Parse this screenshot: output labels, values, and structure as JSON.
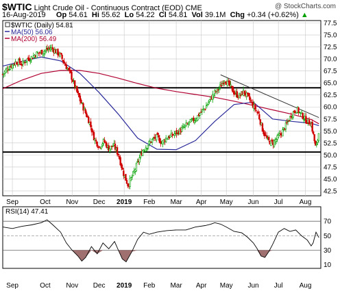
{
  "header": {
    "ticker": "$WTIC",
    "name": "Light Crude Oil - Continuous Contract (EOD)",
    "exchange": "CME",
    "copyright": "@ StockCharts.com",
    "date": "16-Aug-2019",
    "op_label": "Op",
    "op": "54.61",
    "hi_label": "Hi",
    "hi": "55.62",
    "lo_label": "Lo",
    "lo": "54.22",
    "cl_label": "Cl",
    "cl": "54.81",
    "vol_label": "Vol",
    "vol": "39.1M",
    "chg_label": "Chg",
    "chg": "+0.34 (+0.62%)",
    "chg_arrow": "▲"
  },
  "colors": {
    "price_up": "#00a000",
    "price_down": "#d00000",
    "ma50": "#2a2a9a",
    "ma200": "#b00030",
    "grid": "#c8c8c8",
    "rsi_line": "#000000",
    "rsi_fill": "#a07070"
  },
  "chart_data": [
    {
      "type": "candlestick",
      "legend": [
        {
          "label": "$WTIC (Daily) 54.81",
          "color": "#000000"
        },
        {
          "label": "MA(50) 56.06",
          "color": "#2a2a9a"
        },
        {
          "label": "MA(200) 56.49",
          "color": "#b00030"
        }
      ],
      "ylim": [
        41.5,
        78.0
      ],
      "y_ticks": [
        "42.5",
        "45.0",
        "47.5",
        "50.0",
        "52.5",
        "55.0",
        "57.5",
        "60.0",
        "62.5",
        "65.0",
        "67.5",
        "70.0",
        "72.5",
        "75.0",
        "77.5"
      ],
      "x_labels": [
        "Sep",
        "Oct",
        "Nov",
        "Dec",
        "2019",
        "Feb",
        "Mar",
        "Apr",
        "May",
        "Jun",
        "Jul",
        "Aug"
      ],
      "x_label_pos": [
        0.5,
        2.2,
        3.6,
        5.0,
        6.3,
        7.6,
        9.0,
        10.3,
        11.6,
        13.0,
        14.3,
        15.7
      ],
      "x_range": [
        0,
        16.5
      ],
      "hlines": [
        64.0,
        50.6
      ],
      "trendline": {
        "x": [
          11.3,
          16.4
        ],
        "y": [
          66.7,
          57.8
        ]
      },
      "close_points": [
        [
          0.0,
          66.8
        ],
        [
          0.25,
          68.0
        ],
        [
          0.5,
          68.8
        ],
        [
          0.75,
          69.5
        ],
        [
          1.0,
          68.9
        ],
        [
          1.25,
          69.9
        ],
        [
          1.5,
          70.3
        ],
        [
          1.75,
          71.1
        ],
        [
          2.0,
          71.4
        ],
        [
          2.25,
          71.8
        ],
        [
          2.5,
          72.3
        ],
        [
          2.75,
          71.6
        ],
        [
          3.0,
          70.7
        ],
        [
          3.25,
          68.7
        ],
        [
          3.5,
          67.0
        ],
        [
          3.75,
          64.2
        ],
        [
          4.0,
          61.5
        ],
        [
          4.25,
          59.2
        ],
        [
          4.5,
          56.8
        ],
        [
          4.75,
          53.4
        ],
        [
          5.0,
          51.7
        ],
        [
          5.25,
          52.9
        ],
        [
          5.5,
          51.3
        ],
        [
          5.75,
          52.0
        ],
        [
          6.0,
          50.1
        ],
        [
          6.25,
          46.3
        ],
        [
          6.5,
          43.7
        ],
        [
          6.75,
          45.8
        ],
        [
          7.0,
          48.4
        ],
        [
          7.25,
          50.9
        ],
        [
          7.5,
          52.0
        ],
        [
          7.75,
          53.1
        ],
        [
          8.0,
          53.8
        ],
        [
          8.25,
          52.5
        ],
        [
          8.5,
          53.6
        ],
        [
          8.75,
          54.0
        ],
        [
          9.0,
          54.6
        ],
        [
          9.25,
          55.2
        ],
        [
          9.5,
          56.1
        ],
        [
          9.75,
          56.9
        ],
        [
          10.0,
          57.5
        ],
        [
          10.25,
          58.8
        ],
        [
          10.5,
          59.8
        ],
        [
          10.75,
          61.5
        ],
        [
          11.0,
          63.0
        ],
        [
          11.25,
          64.0
        ],
        [
          11.5,
          65.8
        ],
        [
          11.75,
          64.5
        ],
        [
          12.0,
          63.0
        ],
        [
          12.25,
          62.2
        ],
        [
          12.5,
          63.2
        ],
        [
          12.75,
          61.9
        ],
        [
          13.0,
          60.2
        ],
        [
          13.25,
          58.6
        ],
        [
          13.5,
          55.0
        ],
        [
          13.75,
          53.0
        ],
        [
          14.0,
          52.4
        ],
        [
          14.25,
          53.5
        ],
        [
          14.5,
          54.8
        ],
        [
          14.75,
          56.6
        ],
        [
          15.0,
          58.6
        ],
        [
          15.25,
          59.5
        ],
        [
          15.5,
          58.4
        ],
        [
          15.75,
          57.1
        ],
        [
          16.0,
          56.6
        ],
        [
          16.25,
          51.2
        ],
        [
          16.4,
          54.8
        ]
      ],
      "ma50_points": [
        [
          0.0,
          68.5
        ],
        [
          1.0,
          69.5
        ],
        [
          2.0,
          70.4
        ],
        [
          3.0,
          69.6
        ],
        [
          4.0,
          67.0
        ],
        [
          5.0,
          63.0
        ],
        [
          6.0,
          58.5
        ],
        [
          7.0,
          53.5
        ],
        [
          8.0,
          51.2
        ],
        [
          9.0,
          51.1
        ],
        [
          10.0,
          53.0
        ],
        [
          11.0,
          57.0
        ],
        [
          12.0,
          60.5
        ],
        [
          13.0,
          61.0
        ],
        [
          14.0,
          57.5
        ],
        [
          15.0,
          57.0
        ],
        [
          16.0,
          56.6
        ],
        [
          16.4,
          56.1
        ]
      ],
      "ma200_points": [
        [
          0.0,
          63.8
        ],
        [
          1.0,
          65.6
        ],
        [
          2.0,
          67.0
        ],
        [
          3.0,
          67.6
        ],
        [
          4.0,
          67.6
        ],
        [
          5.0,
          67.0
        ],
        [
          6.0,
          66.0
        ],
        [
          7.0,
          64.9
        ],
        [
          8.0,
          63.9
        ],
        [
          9.0,
          63.2
        ],
        [
          10.0,
          62.6
        ],
        [
          11.0,
          62.0
        ],
        [
          12.0,
          61.2
        ],
        [
          13.0,
          60.3
        ],
        [
          14.0,
          59.4
        ],
        [
          15.0,
          58.5
        ],
        [
          16.0,
          57.4
        ],
        [
          16.4,
          56.5
        ]
      ]
    },
    {
      "type": "line",
      "legend": [
        {
          "label": "RSI(14) 47.41",
          "color": "#000000"
        }
      ],
      "ylim": [
        5,
        90
      ],
      "y_ticks": [
        "10",
        "30",
        "50",
        "70"
      ],
      "ref_lines": [
        70,
        50,
        30
      ],
      "points": [
        [
          0.0,
          62
        ],
        [
          0.5,
          60
        ],
        [
          1.0,
          63
        ],
        [
          1.5,
          65
        ],
        [
          2.0,
          68
        ],
        [
          2.3,
          72
        ],
        [
          2.6,
          65
        ],
        [
          3.0,
          55
        ],
        [
          3.3,
          40
        ],
        [
          3.6,
          30
        ],
        [
          3.9,
          22
        ],
        [
          4.1,
          15
        ],
        [
          4.3,
          20
        ],
        [
          4.6,
          35
        ],
        [
          4.9,
          25
        ],
        [
          5.2,
          40
        ],
        [
          5.5,
          32
        ],
        [
          5.8,
          42
        ],
        [
          6.0,
          30
        ],
        [
          6.2,
          18
        ],
        [
          6.4,
          14
        ],
        [
          6.7,
          28
        ],
        [
          7.0,
          45
        ],
        [
          7.3,
          55
        ],
        [
          7.6,
          52
        ],
        [
          8.0,
          55
        ],
        [
          8.5,
          57
        ],
        [
          9.0,
          58
        ],
        [
          9.5,
          58
        ],
        [
          10.0,
          62
        ],
        [
          10.5,
          64
        ],
        [
          10.8,
          66
        ],
        [
          11.0,
          68
        ],
        [
          11.3,
          66
        ],
        [
          11.6,
          62
        ],
        [
          12.0,
          56
        ],
        [
          12.4,
          54
        ],
        [
          12.7,
          48
        ],
        [
          13.0,
          40
        ],
        [
          13.2,
          32
        ],
        [
          13.4,
          22
        ],
        [
          13.6,
          20
        ],
        [
          13.8,
          28
        ],
        [
          14.0,
          38
        ],
        [
          14.3,
          55
        ],
        [
          14.6,
          60
        ],
        [
          14.9,
          56
        ],
        [
          15.2,
          58
        ],
        [
          15.5,
          50
        ],
        [
          15.8,
          44
        ],
        [
          16.0,
          36
        ],
        [
          16.1,
          40
        ],
        [
          16.25,
          55
        ],
        [
          16.4,
          47.41
        ]
      ]
    }
  ]
}
